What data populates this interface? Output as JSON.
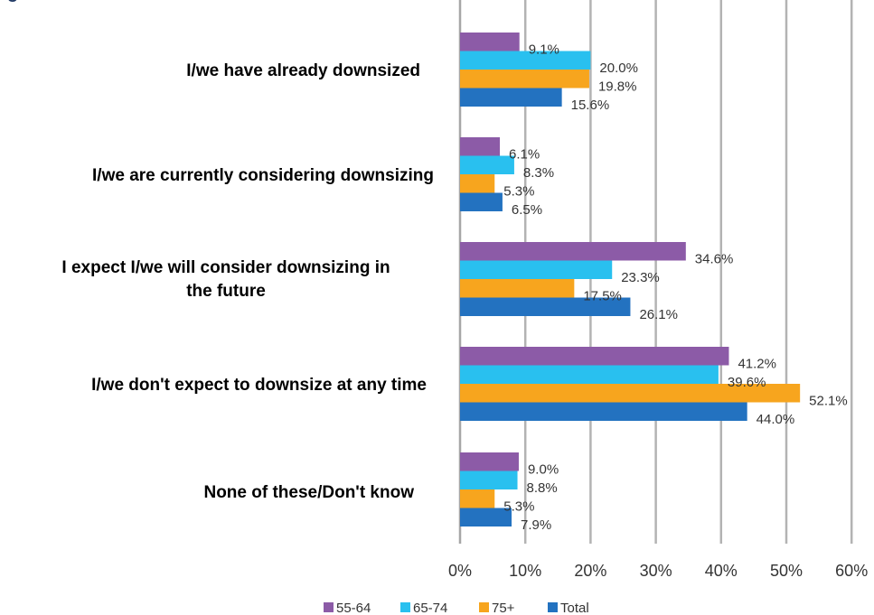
{
  "chart_data": {
    "type": "bar",
    "orientation": "horizontal",
    "title": "",
    "title_partial": "g",
    "categories": [
      [
        "I/we have already downsized"
      ],
      [
        "I/we are currently considering downsizing"
      ],
      [
        "I expect I/we will consider downsizing in",
        "the future"
      ],
      [
        "I/we don't expect to downsize at any time"
      ],
      [
        "None of these/Don't know"
      ]
    ],
    "series": [
      {
        "name": "55-64",
        "color": "#8c5ba7",
        "values": [
          9.1,
          6.1,
          34.6,
          41.2,
          9.0
        ],
        "labels": [
          "9.1%",
          "6.1%",
          "34.6%",
          "41.2%",
          "9.0%"
        ]
      },
      {
        "name": "65-74",
        "color": "#29c0ef",
        "values": [
          20.0,
          8.3,
          23.3,
          39.6,
          8.8
        ],
        "labels": [
          "20.0%",
          "8.3%",
          "23.3%",
          "39.6%",
          "8.8%"
        ]
      },
      {
        "name": "75+",
        "color": "#f7a51e",
        "values": [
          19.8,
          5.3,
          17.5,
          52.1,
          5.3
        ],
        "labels": [
          "19.8%",
          "5.3%",
          "17.5%",
          "52.1%",
          "5.3%"
        ]
      },
      {
        "name": "Total",
        "color": "#2372c0",
        "values": [
          15.6,
          6.5,
          26.1,
          44.0,
          7.9
        ],
        "labels": [
          "15.6%",
          "6.5%",
          "26.1%",
          "44.0%",
          "7.9%"
        ]
      }
    ],
    "xlim": [
      0,
      60
    ],
    "xticks": [
      "0%",
      "10%",
      "20%",
      "30%",
      "40%",
      "50%",
      "60%"
    ],
    "grid": true,
    "legend_position": "bottom"
  }
}
